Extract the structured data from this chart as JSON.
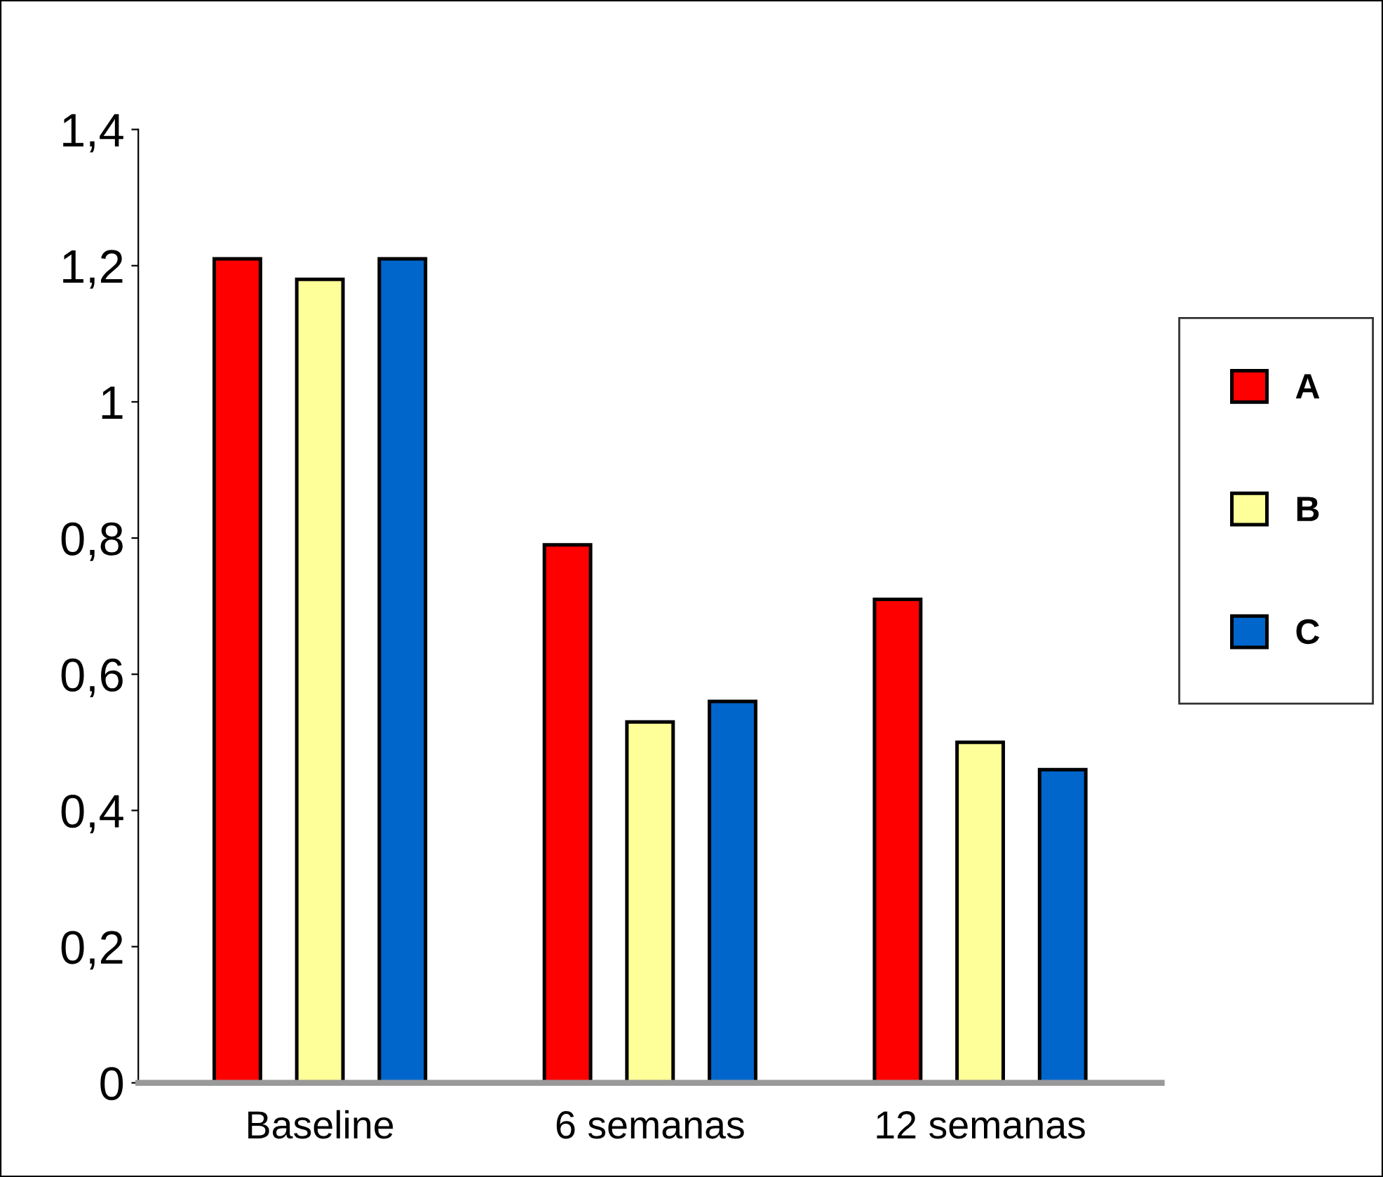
{
  "chart_data": {
    "type": "bar",
    "categories": [
      "Baseline",
      "6 semanas",
      "12 semanas"
    ],
    "series": [
      {
        "name": "A",
        "color": "#ff0000",
        "values": [
          1.21,
          0.79,
          0.71
        ]
      },
      {
        "name": "B",
        "color": "#ffff99",
        "values": [
          1.18,
          0.53,
          0.5
        ]
      },
      {
        "name": "C",
        "color": "#0066cc",
        "values": [
          1.21,
          0.56,
          0.46
        ]
      }
    ],
    "ylim": [
      0,
      1.4
    ],
    "yticks": [
      0,
      {
        "value": 0.2,
        "label": "0,2"
      },
      {
        "value": 0.4,
        "label": "0,4"
      },
      {
        "value": 0.6,
        "label": "0,6"
      },
      {
        "value": 0.8,
        "label": "0,8"
      },
      1,
      {
        "value": 1.2,
        "label": "1,2"
      },
      {
        "value": 1.4,
        "label": "1,4"
      }
    ],
    "grid": false,
    "legend": "right"
  }
}
